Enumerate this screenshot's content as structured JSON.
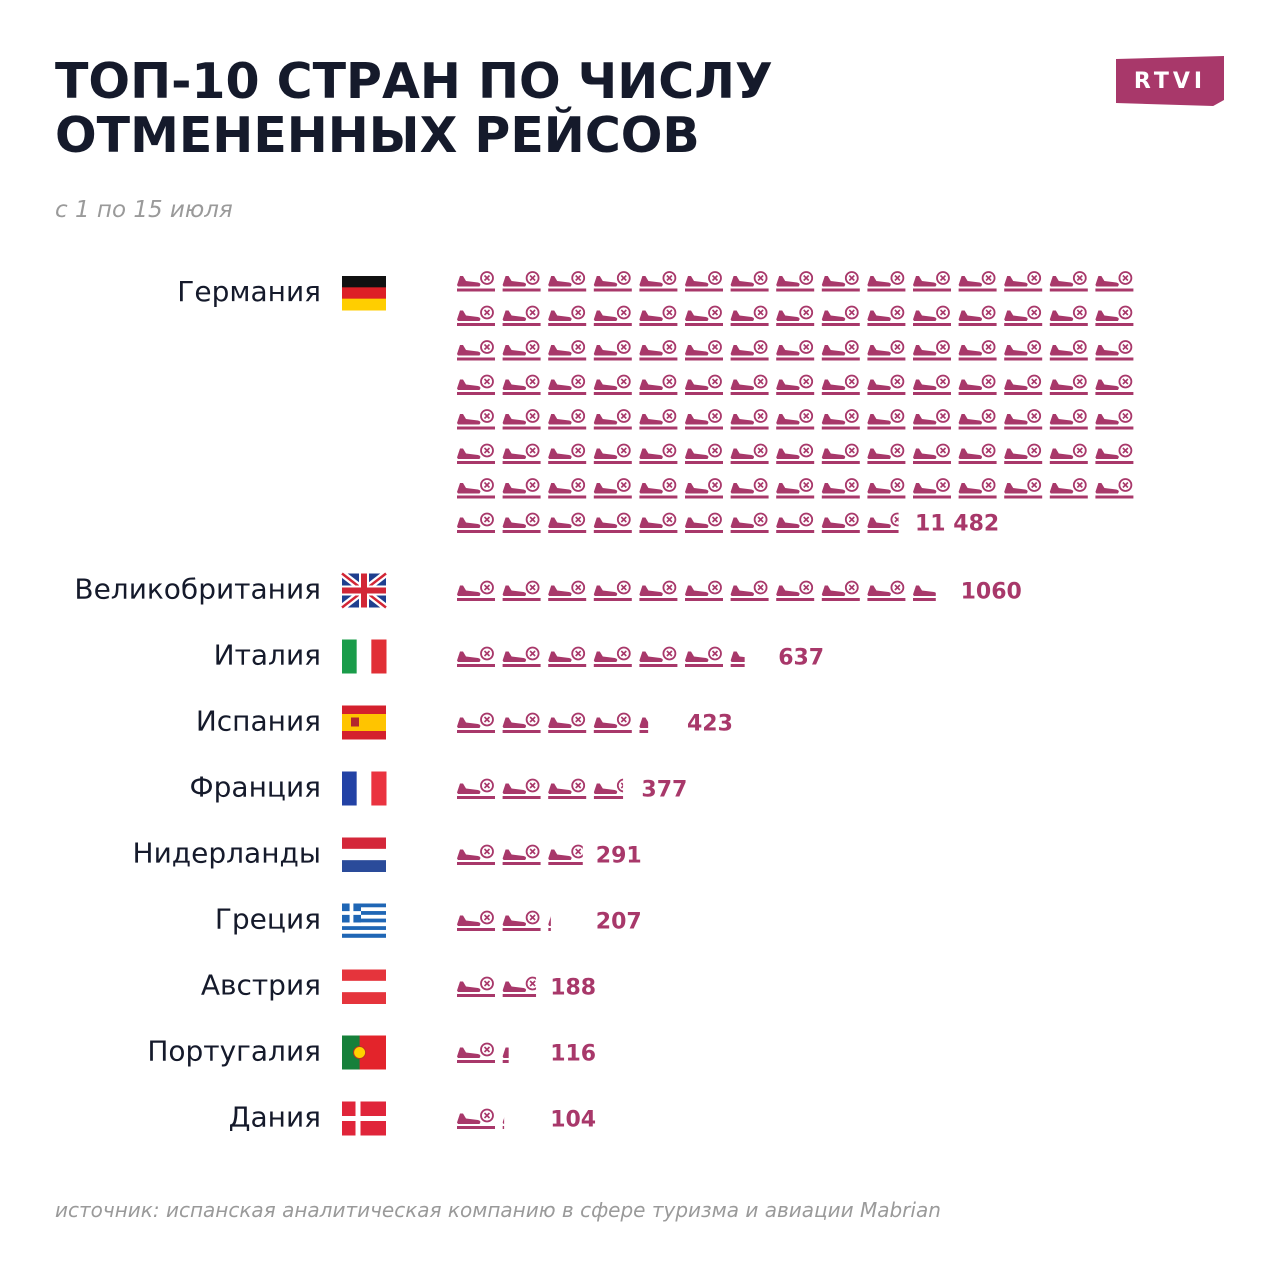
{
  "chart_data": {
    "type": "pictograph",
    "title": "ТОП-10 СТРАН ПО ЧИСЛУ ОТМЕНЕННЫХ РЕЙСОВ",
    "subtitle": "с 1 по 15 июля",
    "logo": "RTVI",
    "source": "источник: испанская аналитическая компанию в сфере туризма и авиации Mabrian",
    "color": "#a8386a",
    "categories": [
      "Германия",
      "Великобритания",
      "Италия",
      "Испания",
      "Франция",
      "Нидерланды",
      "Греция",
      "Австрия",
      "Португалия",
      "Дания"
    ],
    "values": [
      11482,
      1060,
      637,
      423,
      377,
      291,
      207,
      188,
      116,
      104
    ],
    "value_labels": [
      "11 482",
      "1060",
      "637",
      "423",
      "377",
      "291",
      "207",
      "188",
      "116",
      "104"
    ]
  }
}
